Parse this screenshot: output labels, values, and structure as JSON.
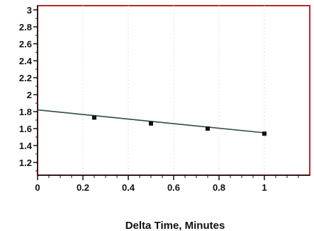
{
  "chart_data": {
    "type": "scatter",
    "title": "",
    "xlabel": "Delta Time, Minutes",
    "ylabel": "",
    "xlim": [
      0,
      1.2
    ],
    "ylim": [
      1.05,
      3.05
    ],
    "x_ticks": [
      0,
      0.2,
      0.4,
      0.6,
      0.8,
      1
    ],
    "x_tick_labels": [
      "0",
      "0.2",
      "0.4",
      "0.6",
      "0.8",
      "1"
    ],
    "y_ticks": [
      1.2,
      1.4,
      1.6,
      1.8,
      2,
      2.2,
      2.4,
      2.6,
      2.8,
      3
    ],
    "y_tick_labels": [
      "1.2",
      "1.4",
      "1.6",
      "1.8",
      "2",
      "2.2",
      "2.4",
      "2.6",
      "2.8",
      "3"
    ],
    "grid": true,
    "series": [
      {
        "points": [
          {
            "x": 0.25,
            "y": 1.73
          },
          {
            "x": 0.5,
            "y": 1.66
          },
          {
            "x": 0.75,
            "y": 1.6
          },
          {
            "x": 1.0,
            "y": 1.54
          }
        ]
      }
    ],
    "trendline": {
      "x": [
        0,
        1.0
      ],
      "y": [
        1.82,
        1.55
      ]
    },
    "colors": {
      "plot_border": "#b52a2a",
      "axis": "#111111",
      "grid": "#e2e2e2",
      "trendline": "#2a4a4a",
      "marker": "#111111"
    }
  }
}
